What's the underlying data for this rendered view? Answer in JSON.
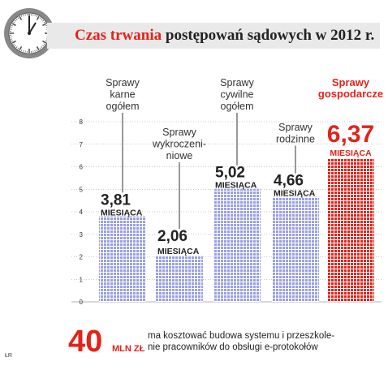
{
  "title": {
    "highlight": "Czas trwania",
    "rest": "postępowań sądowych w 2012 r."
  },
  "chart_data": {
    "type": "bar",
    "title": "Czas trwania postępowań sądowych w 2012 r.",
    "ylim": [
      0,
      8
    ],
    "yticks": [
      0,
      1,
      2,
      3,
      4,
      5,
      6,
      7,
      8
    ],
    "grid": true,
    "categories": [
      [
        "Sprawy",
        "karne",
        "ogółem"
      ],
      [
        "Sprawy",
        "wykroczeni-",
        "niowe"
      ],
      [
        "Sprawy",
        "cywilne",
        "ogółem"
      ],
      [
        "Sprawy",
        "rodzinne"
      ],
      [
        "Sprawy",
        "gospodarcze"
      ]
    ],
    "values": [
      3.81,
      2.06,
      5.02,
      4.66,
      6.37
    ],
    "value_labels": [
      "3,81",
      "2,06",
      "5,02",
      "4,66",
      "6,37"
    ],
    "unit": "MIESIĄCA",
    "colors": [
      "#8f95dd",
      "#8f95dd",
      "#8f95dd",
      "#8f95dd",
      "#e2231a"
    ],
    "highlight_index": 4
  },
  "footer": {
    "number": "40",
    "unit": "MLN ZŁ",
    "text_lines": [
      "ma kosztować budowa systemu i przeszkole-",
      "nie pracowników do obsługi e-protokołów"
    ]
  },
  "credit": "ŁR"
}
